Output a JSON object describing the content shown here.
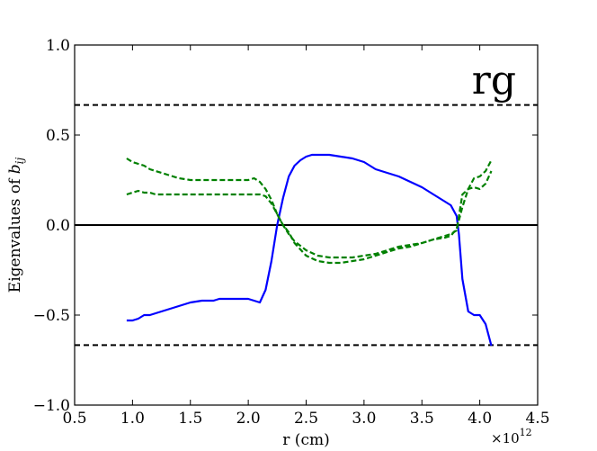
{
  "chart_data": {
    "type": "line",
    "xlabel": "r (cm)",
    "ylabel_prefix": "Eigenvalues of ",
    "ylabel_math_base": "b",
    "ylabel_math_sub": "ij",
    "x_multiplier_base": "×10",
    "x_multiplier_exp": "12",
    "xlim": [
      0.5,
      4.5
    ],
    "ylim": [
      -1.0,
      1.0
    ],
    "xticks": [
      0.5,
      1.0,
      1.5,
      2.0,
      2.5,
      3.0,
      3.5,
      4.0,
      4.5
    ],
    "yticks": [
      -1.0,
      -0.5,
      0.0,
      0.5,
      1.0
    ],
    "xtick_labels": [
      "0.5",
      "1.0",
      "1.5",
      "2.0",
      "2.5",
      "3.0",
      "3.5",
      "4.0",
      "4.5"
    ],
    "ytick_labels": [
      "−1.0",
      "−0.5",
      "0.0",
      "0.5",
      "1.0"
    ],
    "annotation": "rg",
    "grid": false,
    "reference_lines": [
      {
        "y": 0.667,
        "style": "dashed",
        "color": "#000000"
      },
      {
        "y": -0.667,
        "style": "dashed",
        "color": "#000000"
      },
      {
        "y": 0.0,
        "style": "solid",
        "color": "#000000"
      }
    ],
    "series": [
      {
        "style": "solid",
        "color": "#0000ff",
        "x": [
          0.95,
          1.0,
          1.05,
          1.1,
          1.15,
          1.2,
          1.3,
          1.4,
          1.5,
          1.6,
          1.7,
          1.75,
          1.8,
          1.9,
          2.0,
          2.05,
          2.1,
          2.15,
          2.2,
          2.25,
          2.3,
          2.35,
          2.4,
          2.45,
          2.5,
          2.55,
          2.6,
          2.65,
          2.7,
          2.8,
          2.9,
          3.0,
          3.1,
          3.2,
          3.3,
          3.4,
          3.5,
          3.6,
          3.7,
          3.75,
          3.8,
          3.82,
          3.85,
          3.9,
          3.95,
          4.0,
          4.05,
          4.1
        ],
        "y": [
          -0.53,
          -0.53,
          -0.52,
          -0.5,
          -0.5,
          -0.49,
          -0.47,
          -0.45,
          -0.43,
          -0.42,
          -0.42,
          -0.41,
          -0.41,
          -0.41,
          -0.41,
          -0.42,
          -0.43,
          -0.36,
          -0.2,
          0.0,
          0.15,
          0.27,
          0.33,
          0.36,
          0.38,
          0.39,
          0.39,
          0.39,
          0.39,
          0.38,
          0.37,
          0.35,
          0.31,
          0.29,
          0.27,
          0.24,
          0.21,
          0.17,
          0.13,
          0.11,
          0.05,
          -0.05,
          -0.3,
          -0.48,
          -0.5,
          -0.5,
          -0.55,
          -0.67
        ]
      },
      {
        "style": "dashed",
        "color": "#008000",
        "x": [
          0.95,
          1.0,
          1.05,
          1.1,
          1.15,
          1.2,
          1.3,
          1.4,
          1.5,
          1.6,
          1.7,
          1.8,
          1.9,
          2.0,
          2.05,
          2.1,
          2.15,
          2.2,
          2.25,
          2.3,
          2.35,
          2.4,
          2.5,
          2.6,
          2.7,
          2.8,
          2.9,
          3.0,
          3.1,
          3.2,
          3.3,
          3.4,
          3.5,
          3.6,
          3.7,
          3.75,
          3.8,
          3.85,
          3.9,
          3.95,
          4.0,
          4.05,
          4.1
        ],
        "y": [
          0.37,
          0.35,
          0.34,
          0.33,
          0.31,
          0.3,
          0.28,
          0.26,
          0.25,
          0.25,
          0.25,
          0.25,
          0.25,
          0.25,
          0.26,
          0.24,
          0.2,
          0.14,
          0.06,
          0.0,
          -0.05,
          -0.09,
          -0.14,
          -0.17,
          -0.18,
          -0.18,
          -0.18,
          -0.17,
          -0.16,
          -0.14,
          -0.12,
          -0.11,
          -0.1,
          -0.08,
          -0.07,
          -0.06,
          -0.02,
          0.1,
          0.2,
          0.26,
          0.27,
          0.3,
          0.36
        ]
      },
      {
        "style": "dashed",
        "color": "#008000",
        "x": [
          0.95,
          1.0,
          1.05,
          1.1,
          1.15,
          1.2,
          1.3,
          1.4,
          1.5,
          1.6,
          1.7,
          1.8,
          1.9,
          2.0,
          2.1,
          2.15,
          2.2,
          2.25,
          2.3,
          2.35,
          2.4,
          2.5,
          2.6,
          2.7,
          2.8,
          2.9,
          3.0,
          3.1,
          3.2,
          3.3,
          3.4,
          3.5,
          3.6,
          3.7,
          3.75,
          3.8,
          3.85,
          3.9,
          3.95,
          4.0,
          4.05,
          4.1
        ],
        "y": [
          0.17,
          0.18,
          0.19,
          0.18,
          0.18,
          0.17,
          0.17,
          0.17,
          0.17,
          0.17,
          0.17,
          0.17,
          0.17,
          0.17,
          0.17,
          0.16,
          0.12,
          0.06,
          0.0,
          -0.04,
          -0.1,
          -0.17,
          -0.2,
          -0.21,
          -0.21,
          -0.2,
          -0.19,
          -0.17,
          -0.15,
          -0.13,
          -0.12,
          -0.1,
          -0.08,
          -0.06,
          -0.05,
          -0.03,
          0.17,
          0.2,
          0.21,
          0.2,
          0.23,
          0.3
        ]
      }
    ]
  }
}
